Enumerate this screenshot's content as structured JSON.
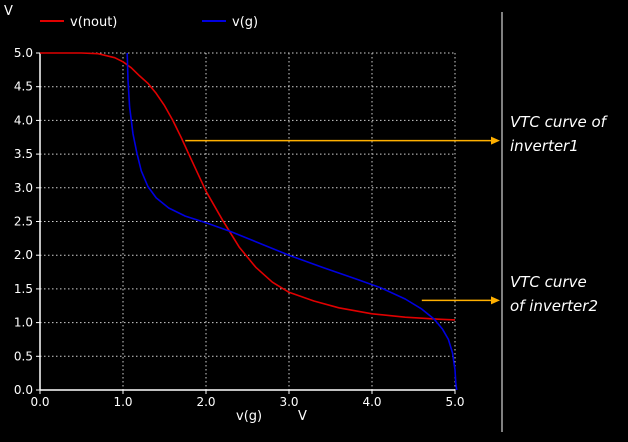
{
  "chart_data": {
    "type": "line",
    "title": "",
    "xlabel": "v(g)",
    "xunit": "V",
    "ylabel": "V",
    "xlim": [
      0.0,
      5.0
    ],
    "ylim": [
      0.0,
      5.0
    ],
    "x_ticks": [
      "0.0",
      "1.0",
      "2.0",
      "3.0",
      "4.0",
      "5.0"
    ],
    "y_ticks": [
      "0.0",
      "0.5",
      "1.0",
      "1.5",
      "2.0",
      "2.5",
      "3.0",
      "3.5",
      "4.0",
      "4.5",
      "5.0"
    ],
    "grid": true,
    "legend_position": "top-left",
    "series": [
      {
        "name": "v(nout)",
        "color": "#e00000",
        "x": [
          0.0,
          0.5,
          0.7,
          0.9,
          1.0,
          1.1,
          1.2,
          1.3,
          1.4,
          1.5,
          1.6,
          1.7,
          1.8,
          2.0,
          2.2,
          2.4,
          2.6,
          2.8,
          3.0,
          3.3,
          3.6,
          4.0,
          4.4,
          4.8,
          5.0
        ],
        "y": [
          5.0,
          5.0,
          4.99,
          4.93,
          4.87,
          4.78,
          4.66,
          4.55,
          4.4,
          4.22,
          4.0,
          3.75,
          3.48,
          2.95,
          2.52,
          2.12,
          1.82,
          1.6,
          1.45,
          1.32,
          1.22,
          1.13,
          1.08,
          1.05,
          1.04
        ]
      },
      {
        "name": "v(g)",
        "color": "#0000e0",
        "x": [
          1.05,
          1.06,
          1.08,
          1.12,
          1.17,
          1.22,
          1.3,
          1.4,
          1.55,
          1.75,
          2.0,
          2.3,
          2.7,
          3.0,
          3.4,
          3.8,
          4.1,
          4.4,
          4.6,
          4.75,
          4.85,
          4.92,
          4.97,
          5.0,
          5.01,
          5.02
        ],
        "y": [
          5.0,
          4.6,
          4.2,
          3.8,
          3.5,
          3.25,
          3.02,
          2.85,
          2.7,
          2.58,
          2.48,
          2.35,
          2.15,
          2.0,
          1.82,
          1.65,
          1.52,
          1.35,
          1.2,
          1.05,
          0.9,
          0.75,
          0.55,
          0.3,
          0.1,
          0.0
        ]
      }
    ],
    "annotations": [
      {
        "target": "v(nout)",
        "arrow_color": "#ffb000",
        "at": {
          "x": 1.75,
          "y": 3.7
        },
        "lines": [
          "VTC curve of",
          "inverter1"
        ]
      },
      {
        "target": "v(g)",
        "arrow_color": "#ffb000",
        "at": {
          "x": 4.6,
          "y": 1.33
        },
        "lines": [
          "VTC curve",
          "of inverter2"
        ]
      }
    ]
  }
}
